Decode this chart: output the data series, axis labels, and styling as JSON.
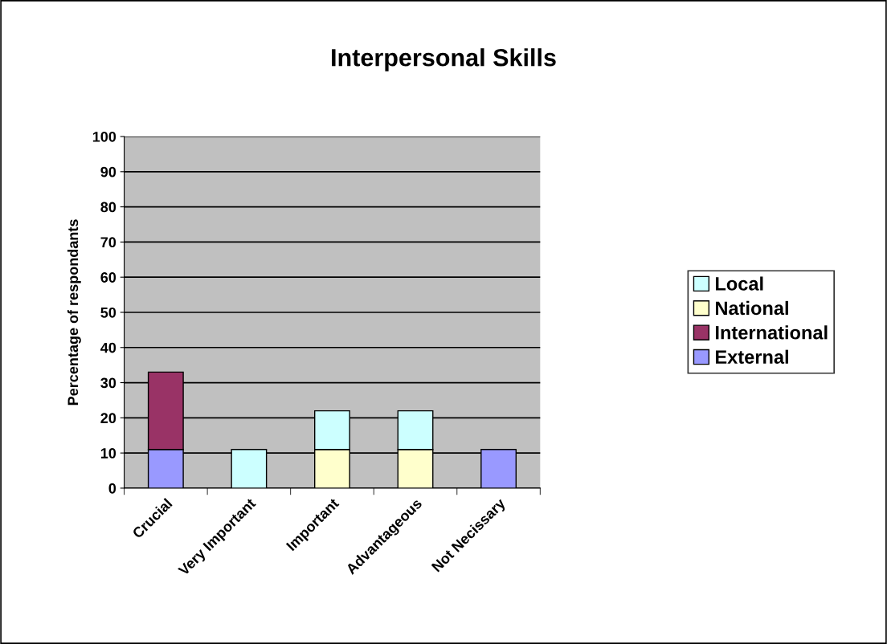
{
  "chart_data": {
    "type": "bar",
    "title": "Interpersonal Skills",
    "ylabel": "Percentage of respondants",
    "categories": [
      "Crucial",
      "Very Important",
      "Important",
      "Advantageous",
      "Not Necissary"
    ],
    "stacked": true,
    "series": [
      {
        "name": "External",
        "color": "#9999ff",
        "values": [
          11,
          null,
          null,
          null,
          11
        ]
      },
      {
        "name": "International",
        "color": "#993366",
        "values": [
          22,
          null,
          null,
          null,
          null
        ]
      },
      {
        "name": "National",
        "color": "#ffffcc",
        "values": [
          null,
          null,
          11,
          11,
          null
        ]
      },
      {
        "name": "Local",
        "color": "#ccffff",
        "values": [
          null,
          11,
          11,
          11,
          null
        ]
      }
    ],
    "ylim": [
      0,
      100
    ],
    "yticks": [
      0,
      10,
      20,
      30,
      40,
      50,
      60,
      70,
      80,
      90,
      100
    ],
    "grid": "y",
    "legend": "right"
  }
}
